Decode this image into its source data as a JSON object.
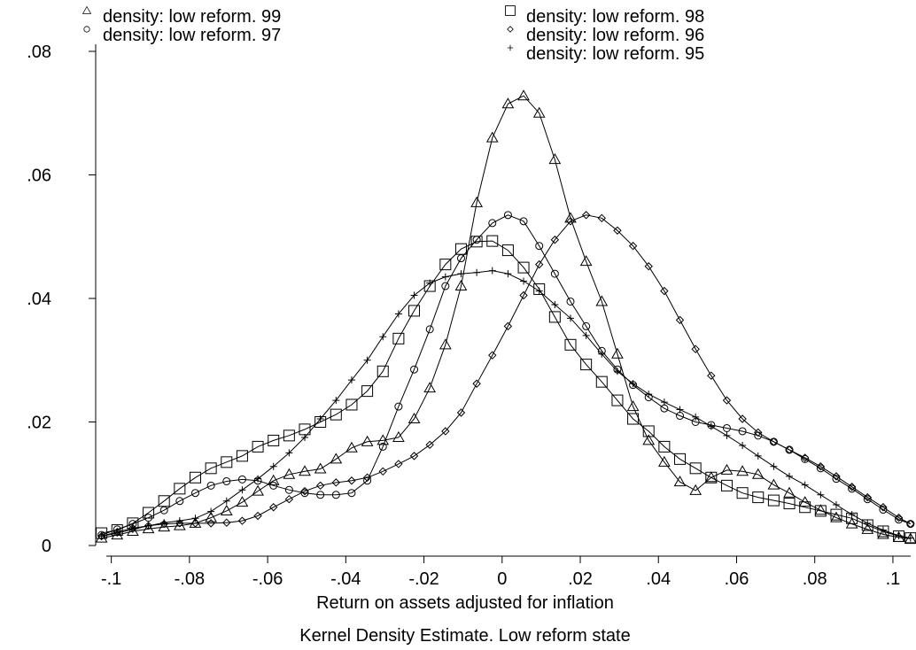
{
  "chart_data": {
    "type": "line",
    "title": "",
    "xlabel": "Return on assets adjusted for inflation",
    "caption": "Kernel Density Estimate. Low reform state",
    "ylabel": "",
    "xlim": [
      -0.104,
      0.105
    ],
    "ylim": [
      0,
      0.08
    ],
    "x_ticks": [
      {
        "v": -0.1,
        "label": "-.1"
      },
      {
        "v": -0.08,
        "label": "-.08"
      },
      {
        "v": -0.06,
        "label": "-.06"
      },
      {
        "v": -0.04,
        "label": "-.04"
      },
      {
        "v": -0.02,
        "label": "-.02"
      },
      {
        "v": 0,
        "label": "0"
      },
      {
        "v": 0.02,
        "label": ".02"
      },
      {
        "v": 0.04,
        "label": ".04"
      },
      {
        "v": 0.06,
        "label": ".06"
      },
      {
        "v": 0.08,
        "label": ".08"
      },
      {
        "v": 0.1,
        "label": ".1"
      }
    ],
    "y_ticks": [
      {
        "v": 0,
        "label": "0"
      },
      {
        "v": 0.02,
        "label": ".02"
      },
      {
        "v": 0.04,
        "label": ".04"
      },
      {
        "v": 0.06,
        "label": ".06"
      },
      {
        "v": 0.08,
        "label": ".08"
      }
    ],
    "grid": false,
    "legend_position": "top",
    "x": [
      -0.1025,
      -0.0985,
      -0.0945,
      -0.0905,
      -0.0865,
      -0.0825,
      -0.0785,
      -0.0745,
      -0.0705,
      -0.0665,
      -0.0625,
      -0.0585,
      -0.0545,
      -0.0505,
      -0.0465,
      -0.0425,
      -0.0385,
      -0.0345,
      -0.0305,
      -0.0265,
      -0.0225,
      -0.0185,
      -0.0145,
      -0.0105,
      -0.0065,
      -0.0025,
      0.0015,
      0.0055,
      0.0095,
      0.0135,
      0.0175,
      0.0215,
      0.0255,
      0.0295,
      0.0335,
      0.0375,
      0.0415,
      0.0455,
      0.0495,
      0.0535,
      0.0575,
      0.0615,
      0.0655,
      0.0695,
      0.0735,
      0.0775,
      0.0815,
      0.0855,
      0.0895,
      0.0935,
      0.0975,
      0.1015,
      0.1045
    ],
    "series": [
      {
        "name": "density: low reform. 99",
        "marker": "triangle",
        "values": [
          0.0012,
          0.0017,
          0.0023,
          0.0027,
          0.003,
          0.0032,
          0.0036,
          0.0045,
          0.0056,
          0.007,
          0.0088,
          0.0105,
          0.0115,
          0.012,
          0.0124,
          0.014,
          0.0158,
          0.0168,
          0.017,
          0.0175,
          0.0205,
          0.0255,
          0.0325,
          0.042,
          0.0555,
          0.066,
          0.0715,
          0.0728,
          0.07,
          0.0625,
          0.053,
          0.046,
          0.0395,
          0.031,
          0.0225,
          0.017,
          0.0135,
          0.0103,
          0.0089,
          0.011,
          0.0122,
          0.012,
          0.0115,
          0.0098,
          0.0085,
          0.007,
          0.0057,
          0.0045,
          0.0035,
          0.0026,
          0.0018,
          0.0013,
          0.0011
        ]
      },
      {
        "name": "density: low reform. 98",
        "marker": "square",
        "values": [
          0.002,
          0.0025,
          0.0036,
          0.0053,
          0.0072,
          0.0092,
          0.011,
          0.0125,
          0.0135,
          0.0145,
          0.016,
          0.017,
          0.0178,
          0.0188,
          0.02,
          0.0212,
          0.0228,
          0.025,
          0.0282,
          0.0335,
          0.038,
          0.042,
          0.0455,
          0.048,
          0.0492,
          0.0493,
          0.0478,
          0.045,
          0.0415,
          0.037,
          0.0325,
          0.0293,
          0.0265,
          0.0235,
          0.0205,
          0.0185,
          0.016,
          0.014,
          0.0125,
          0.011,
          0.0097,
          0.0085,
          0.0078,
          0.0073,
          0.0068,
          0.0062,
          0.0056,
          0.005,
          0.0044,
          0.0033,
          0.0023,
          0.0015,
          0.0012
        ]
      },
      {
        "name": "density: low reform. 97",
        "marker": "circle",
        "values": [
          0.0017,
          0.0026,
          0.0035,
          0.0045,
          0.0057,
          0.0072,
          0.0085,
          0.0097,
          0.0104,
          0.0107,
          0.0105,
          0.0097,
          0.009,
          0.0085,
          0.0082,
          0.0082,
          0.0085,
          0.0105,
          0.016,
          0.0225,
          0.0285,
          0.035,
          0.042,
          0.0465,
          0.0495,
          0.0522,
          0.0535,
          0.0525,
          0.0485,
          0.044,
          0.0395,
          0.0355,
          0.0315,
          0.0285,
          0.026,
          0.024,
          0.0222,
          0.021,
          0.02,
          0.0195,
          0.019,
          0.0185,
          0.0178,
          0.0168,
          0.0155,
          0.014,
          0.0125,
          0.0108,
          0.0092,
          0.0075,
          0.0058,
          0.0042,
          0.0035
        ]
      },
      {
        "name": "density: low reform. 96",
        "marker": "diamond",
        "values": [
          0.0015,
          0.0022,
          0.0028,
          0.0032,
          0.0035,
          0.0036,
          0.0036,
          0.0036,
          0.0037,
          0.004,
          0.0048,
          0.0062,
          0.0075,
          0.0088,
          0.0097,
          0.0102,
          0.0105,
          0.011,
          0.012,
          0.0132,
          0.0145,
          0.0163,
          0.0185,
          0.0215,
          0.0262,
          0.0308,
          0.0355,
          0.0405,
          0.0455,
          0.0495,
          0.0525,
          0.0535,
          0.053,
          0.051,
          0.0485,
          0.0452,
          0.0412,
          0.0365,
          0.0318,
          0.0275,
          0.0235,
          0.0205,
          0.0183,
          0.0168,
          0.0155,
          0.0142,
          0.0128,
          0.0112,
          0.0095,
          0.0078,
          0.0062,
          0.0045,
          0.0035
        ]
      },
      {
        "name": "density: low reform. 95",
        "marker": "plus",
        "values": [
          0.0015,
          0.002,
          0.0026,
          0.0032,
          0.0037,
          0.004,
          0.0044,
          0.0055,
          0.0072,
          0.009,
          0.0108,
          0.0128,
          0.015,
          0.0175,
          0.0205,
          0.0235,
          0.0268,
          0.03,
          0.0338,
          0.0375,
          0.0405,
          0.0425,
          0.0435,
          0.044,
          0.0442,
          0.0445,
          0.044,
          0.0428,
          0.0412,
          0.039,
          0.0368,
          0.034,
          0.031,
          0.0282,
          0.0262,
          0.0245,
          0.0232,
          0.022,
          0.0208,
          0.0193,
          0.0178,
          0.0162,
          0.0145,
          0.0128,
          0.0112,
          0.0098,
          0.0082,
          0.0066,
          0.005,
          0.0036,
          0.0025,
          0.0016,
          0.0012
        ]
      }
    ]
  }
}
